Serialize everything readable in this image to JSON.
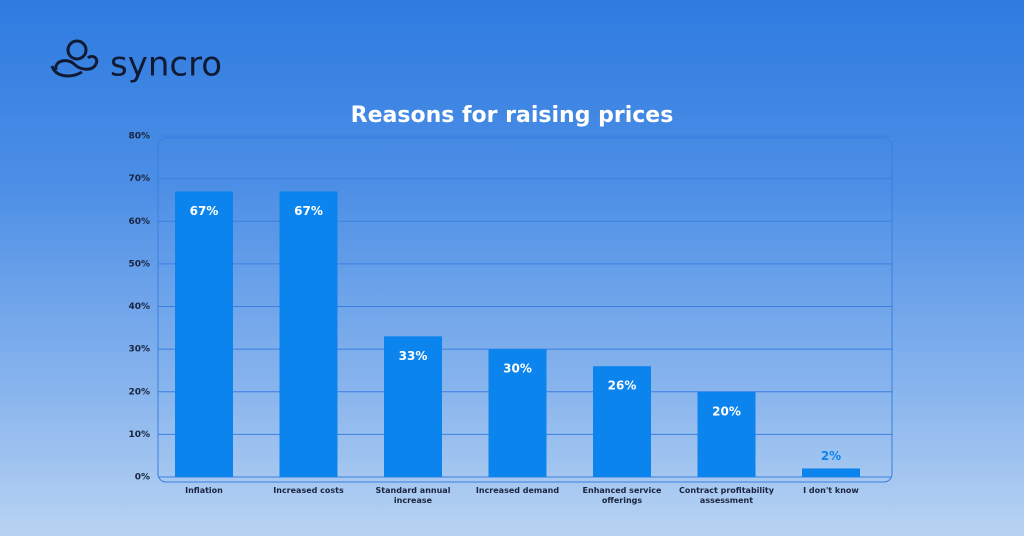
{
  "brand": "syncro",
  "chart_data": {
    "type": "bar",
    "title": "Reasons for raising prices",
    "categories": [
      "Inflation",
      "Increased costs",
      "Standard annual increase",
      "Increased demand",
      "Enhanced service offerings",
      "Contract profitability assessment",
      "I don't know"
    ],
    "values": [
      67,
      67,
      33,
      30,
      26,
      20,
      2
    ],
    "value_labels": [
      "67%",
      "67%",
      "33%",
      "30%",
      "26%",
      "20%",
      "2%"
    ],
    "color": "#0b84ee",
    "ylim": [
      0,
      80
    ],
    "yticks": [
      {
        "value": 0,
        "label": "0%"
      },
      {
        "value": 10,
        "label": "10%"
      },
      {
        "value": 20,
        "label": "20%"
      },
      {
        "value": 30,
        "label": "30%"
      },
      {
        "value": 40,
        "label": "40%"
      },
      {
        "value": 50,
        "label": "50%"
      },
      {
        "value": 60,
        "label": "60%"
      },
      {
        "value": 70,
        "label": "70%"
      },
      {
        "value": 80,
        "label": "80%"
      }
    ],
    "grid": true
  }
}
